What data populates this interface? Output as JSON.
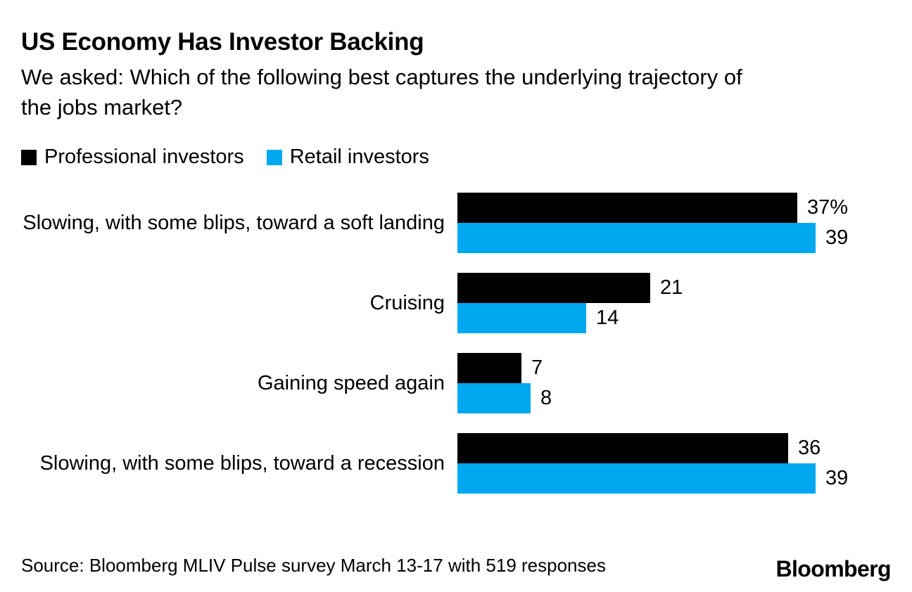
{
  "header": {
    "title": "US Economy Has Investor Backing",
    "subtitle": "We asked: Which of the following best captures the underlying trajectory of\nthe jobs market?"
  },
  "legend": {
    "items": [
      {
        "label": "Professional investors",
        "color": "#000000"
      },
      {
        "label": "Retail investors",
        "color": "#00a8f0"
      }
    ]
  },
  "chart_data": {
    "type": "bar",
    "orientation": "horizontal",
    "title": "US Economy Has Investor Backing",
    "subtitle": "We asked: Which of the following best captures the underlying trajectory of the jobs market?",
    "categories": [
      "Slowing, with some blips, toward a soft landing",
      "Cruising",
      "Gaining speed again",
      "Slowing, with some blips, toward a recession"
    ],
    "series": [
      {
        "name": "Professional investors",
        "color": "#000000",
        "values": [
          37,
          21,
          7,
          36
        ],
        "labels": [
          "37%",
          "21",
          "7",
          "36"
        ]
      },
      {
        "name": "Retail investors",
        "color": "#00a8f0",
        "values": [
          39,
          14,
          8,
          39
        ],
        "labels": [
          "39",
          "14",
          "8",
          "39"
        ]
      }
    ],
    "value_unit": "percent",
    "xlim": [
      0,
      42
    ],
    "grid": false,
    "axis_hidden": true,
    "legend_position": "top"
  },
  "footer": {
    "source": "Source: Bloomberg MLIV Pulse survey March 13-17 with 519 responses",
    "logo": "Bloomberg"
  },
  "colors": {
    "background": "#ffffff",
    "text": "#000000",
    "professional": "#000000",
    "retail": "#00a8f0"
  }
}
